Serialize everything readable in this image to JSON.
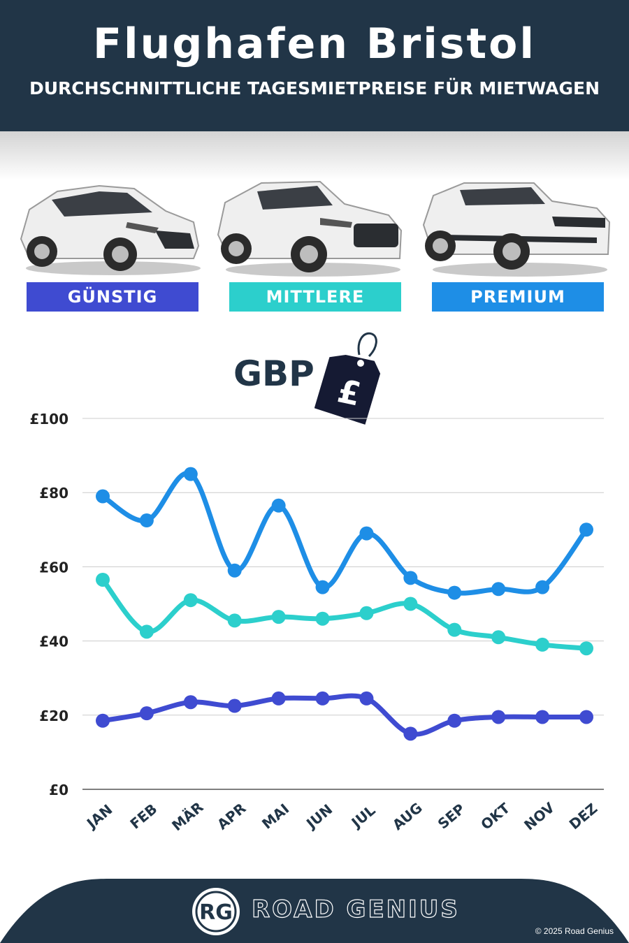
{
  "header": {
    "title": "Flughafen Bristol",
    "subtitle": "DURCHSCHNITTLICHE TAGESMIETPREISE FÜR MIETWAGEN"
  },
  "categories": [
    {
      "label": "GÜNSTIG",
      "color": "#3f4bd1",
      "car": "hatchback"
    },
    {
      "label": "MITTLERE",
      "color": "#2ccfcc",
      "car": "suv"
    },
    {
      "label": "PREMIUM",
      "color": "#1e8ee6",
      "car": "premium-suv"
    }
  ],
  "currency_label": "GBP",
  "currency_icon": "pound-price-tag-icon",
  "chart_data": {
    "type": "line",
    "categories": [
      "JAN",
      "FEB",
      "MÄR",
      "APR",
      "MAI",
      "JUN",
      "JUL",
      "AUG",
      "SEP",
      "OKT",
      "NOV",
      "DEZ"
    ],
    "ylim": [
      0,
      100
    ],
    "yticks": [
      0,
      20,
      40,
      60,
      80,
      100
    ],
    "ytick_labels": [
      "£0",
      "£20",
      "£40",
      "£60",
      "£80",
      "£100"
    ],
    "grid": true,
    "series": [
      {
        "name": "PREMIUM",
        "color": "#1e8ee6",
        "values": [
          79,
          72.5,
          85,
          59,
          76.5,
          54.5,
          69,
          57,
          53,
          54,
          54.5,
          70
        ]
      },
      {
        "name": "MITTLERE",
        "color": "#2ccfcc",
        "values": [
          56.5,
          42.5,
          51,
          45.5,
          46.5,
          46,
          47.5,
          50,
          43,
          41,
          39,
          38
        ]
      },
      {
        "name": "GÜNSTIG",
        "color": "#3f4bd1",
        "values": [
          18.5,
          20.5,
          23.5,
          22.5,
          24.5,
          24.5,
          24.5,
          15,
          18.5,
          19.5,
          19.5,
          19.5
        ]
      }
    ]
  },
  "footer": {
    "logo_text": "RG",
    "brand": "ROAD GENIUS",
    "copyright": "© 2025 Road Genius"
  }
}
